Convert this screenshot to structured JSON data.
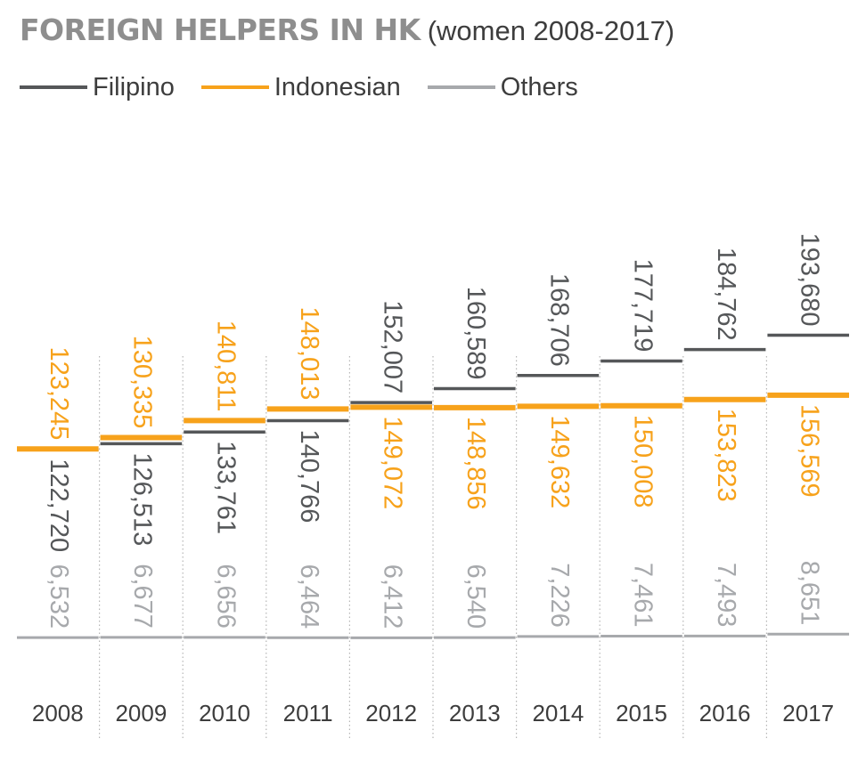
{
  "title": "FOREIGN HELPERS IN HK",
  "subtitle": "(women 2008-2017)",
  "legend": [
    {
      "name": "Filipino",
      "color": "#555759"
    },
    {
      "name": "Indonesian",
      "color": "#f7a21b"
    },
    {
      "name": "Others",
      "color": "#a7a9ac"
    }
  ],
  "chart_data": {
    "type": "line",
    "title": "FOREIGN HELPERS IN HK",
    "subtitle": "(women 2008-2017)",
    "xlabel": "",
    "ylabel": "",
    "categories": [
      "2008",
      "2009",
      "2010",
      "2011",
      "2012",
      "2013",
      "2014",
      "2015",
      "2016",
      "2017"
    ],
    "series": [
      {
        "name": "Filipino",
        "color": "#555759",
        "values": [
          122720,
          126513,
          133761,
          140766,
          152007,
          160589,
          168706,
          177719,
          184762,
          193680
        ],
        "labels": [
          "122,720",
          "126,513",
          "133,761",
          "140,766",
          "152,007",
          "160,589",
          "168,706",
          "177,719",
          "184,762",
          "193,680"
        ],
        "label_side": [
          "below",
          "below",
          "below",
          "below",
          "above",
          "above",
          "above",
          "above",
          "above",
          "above"
        ]
      },
      {
        "name": "Indonesian",
        "color": "#f7a21b",
        "values": [
          123245,
          130335,
          140811,
          148013,
          149072,
          148856,
          149632,
          150008,
          153823,
          156569
        ],
        "labels": [
          "123,245",
          "130,335",
          "140,811",
          "148,013",
          "149,072",
          "148,856",
          "149,632",
          "150,008",
          "153,823",
          "156,569"
        ],
        "label_side": [
          "above",
          "above",
          "above",
          "above",
          "below",
          "below",
          "below",
          "below",
          "below",
          "below"
        ]
      },
      {
        "name": "Others",
        "color": "#a7a9ac",
        "values": [
          6532,
          6677,
          6656,
          6464,
          6412,
          6540,
          7226,
          7461,
          7493,
          8651
        ],
        "labels": [
          "6,532",
          "6,677",
          "6,656",
          "6,464",
          "6,412",
          "6,540",
          "7,226",
          "7,461",
          "7,493",
          "8,651"
        ],
        "label_side": [
          "above",
          "above",
          "above",
          "above",
          "above",
          "above",
          "above",
          "above",
          "above",
          "above"
        ]
      }
    ],
    "grid": "dotted vertical separators",
    "legend_position": "top-left"
  }
}
